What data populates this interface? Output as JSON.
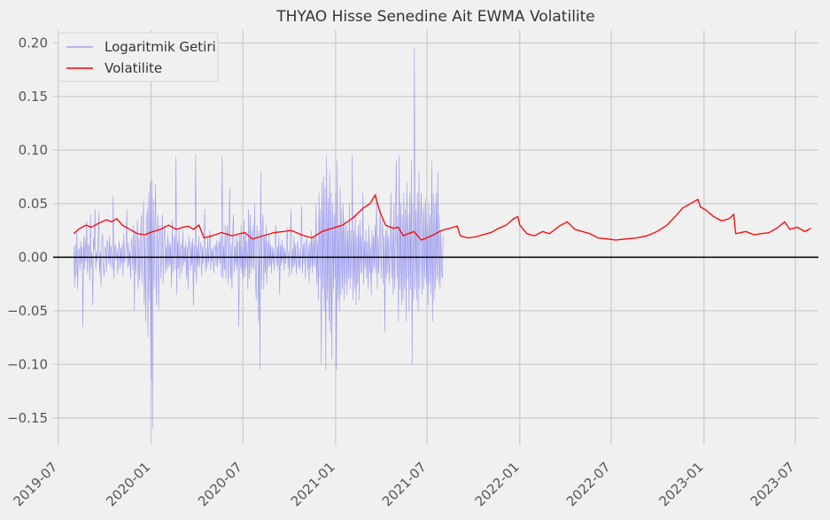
{
  "chart_data": {
    "type": "line",
    "title": "THYAO Hisse Senedine Ait EWMA Volatilite",
    "xlabel": "",
    "ylabel": "",
    "x_range": [
      "2019-06-21",
      "2023-08-16"
    ],
    "ylim": [
      -0.175,
      0.212
    ],
    "grid": true,
    "legend_placement": "top-left",
    "zero_line": 0.0,
    "x_ticks": [
      "2019-07",
      "2020-01",
      "2020-07",
      "2021-01",
      "2021-07",
      "2022-01",
      "2022-07",
      "2023-01",
      "2023-07"
    ],
    "y_ticks": [
      0.2,
      0.15,
      0.1,
      0.05,
      0.0,
      -0.05,
      -0.1,
      -0.15
    ],
    "y_tick_labels": [
      "0.20",
      "0.15",
      "0.10",
      "0.05",
      "0.00",
      "−0.05",
      "−0.10",
      "−0.15"
    ],
    "series": [
      {
        "name": "Logaritmik Getiri",
        "color": "#7b7bf0",
        "style": "thin-line",
        "x_start": "2019-08-01",
        "step_days": 1.5,
        "values": [
          0.01,
          -0.028,
          0.012,
          -0.018,
          0.024,
          -0.03,
          0.005,
          0.008,
          -0.012,
          0.015,
          -0.006,
          0.01,
          -0.065,
          0.02,
          -0.011,
          0.018,
          -0.004,
          0.034,
          -0.015,
          0.012,
          0.009,
          -0.022,
          0.04,
          -0.01,
          0.005,
          -0.045,
          0.018,
          0.007,
          0.045,
          -0.012,
          0.006,
          -0.004,
          0.01,
          0.042,
          -0.015,
          0.005,
          -0.028,
          0.015,
          0.022,
          -0.008,
          -0.018,
          0.01,
          0.006,
          -0.014,
          0.016,
          0.008,
          -0.006,
          0.02,
          -0.009,
          0.011,
          0.003,
          -0.012,
          0.057,
          -0.02,
          0.007,
          0.012,
          -0.003,
          0.008,
          -0.016,
          0.004,
          0.015,
          -0.011,
          0.009,
          -0.006,
          0.012,
          -0.018,
          0.022,
          -0.005,
          0.003,
          0.01,
          0.045,
          -0.01,
          0.014,
          -0.008,
          0.006,
          -0.02,
          0.018,
          0.008,
          -0.012,
          0.03,
          -0.05,
          0.025,
          -0.015,
          0.012,
          0.035,
          -0.03,
          0.018,
          -0.022,
          0.008,
          0.04,
          -0.025,
          0.015,
          0.052,
          -0.045,
          0.02,
          -0.06,
          0.03,
          0.045,
          -0.075,
          0.06,
          -0.04,
          0.07,
          -0.115,
          0.072,
          -0.16,
          0.055,
          -0.03,
          0.025,
          0.068,
          -0.045,
          0.02,
          0.04,
          -0.05,
          0.015,
          0.03,
          -0.02,
          0.012,
          0.04,
          -0.025,
          0.018,
          0.03,
          -0.015,
          0.01,
          -0.012,
          0.022,
          -0.01,
          0.015,
          -0.008,
          0.012,
          -0.028,
          0.035,
          -0.015,
          0.005,
          0.02,
          -0.012,
          0.094,
          -0.035,
          0.015,
          -0.01,
          0.025,
          -0.02,
          0.008,
          0.012,
          -0.015,
          0.025,
          -0.008,
          0.01,
          -0.005,
          0.015,
          -0.02,
          0.01,
          -0.03,
          0.02,
          0.005,
          -0.012,
          0.015,
          -0.008,
          0.018,
          -0.046,
          0.012,
          -0.015,
          0.096,
          -0.025,
          0.01,
          -0.008,
          0.02,
          -0.01,
          0.006,
          0.014,
          -0.018,
          0.01,
          -0.006,
          0.012,
          0.045,
          -0.014,
          0.008,
          -0.01,
          0.018,
          -0.006,
          0.01,
          0.025,
          -0.012,
          0.008,
          -0.004,
          0.01,
          -0.015,
          0.006,
          0.012,
          -0.008,
          0.016,
          -0.01,
          0.005,
          0.015,
          -0.006,
          0.02,
          -0.018,
          0.094,
          -0.02,
          0.01,
          -0.012,
          0.03,
          -0.02,
          0.015,
          0.03,
          -0.025,
          0.015,
          0.065,
          -0.02,
          0.012,
          -0.03,
          0.025,
          0.04,
          -0.015,
          0.01,
          -0.008,
          0.02,
          -0.012,
          0.015,
          -0.065,
          0.02,
          -0.01,
          0.03,
          -0.015,
          0.01,
          -0.02,
          0.035,
          -0.018,
          0.022,
          -0.01,
          0.015,
          -0.03,
          0.045,
          -0.02,
          0.04,
          -0.015,
          0.025,
          -0.01,
          0.03,
          -0.012,
          0.05,
          -0.02,
          -0.04,
          0.03,
          0.015,
          -0.06,
          0.025,
          -0.105,
          0.08,
          -0.03,
          0.025,
          0.04,
          -0.03,
          0.02,
          -0.015,
          0.03,
          -0.025,
          0.015,
          -0.01,
          0.02,
          -0.008,
          0.012,
          -0.015,
          0.01,
          -0.006,
          0.008,
          -0.012,
          0.015,
          0.03,
          -0.008,
          0.01,
          -0.012,
          0.02,
          -0.035,
          0.012,
          -0.008,
          0.016,
          -0.005,
          0.01,
          -0.012,
          0.008,
          -0.006,
          0.012,
          0.028,
          -0.01,
          0.006,
          -0.018,
          0.012,
          0.045,
          -0.015,
          0.008,
          -0.01,
          0.02,
          -0.008,
          0.012,
          -0.016,
          0.01,
          0.015,
          -0.01,
          0.008,
          -0.012,
          0.01,
          0.048,
          -0.015,
          0.012,
          -0.006,
          0.015,
          -0.02,
          0.01,
          0.018,
          -0.012,
          0.012,
          -0.025,
          0.015,
          -0.01,
          0.025,
          -0.015,
          0.018,
          -0.008,
          0.02,
          -0.01,
          0.05,
          -0.025,
          0.015,
          -0.04,
          0.06,
          -0.02,
          0.045,
          -0.1,
          0.07,
          -0.03,
          0.075,
          -0.05,
          0.065,
          -0.105,
          0.094,
          -0.04,
          0.055,
          -0.06,
          0.08,
          -0.07,
          0.06,
          -0.095,
          0.05,
          -0.03,
          0.04,
          -0.02,
          0.06,
          -0.105,
          0.09,
          -0.04,
          0.03,
          -0.05,
          0.065,
          -0.035,
          0.045,
          -0.03,
          0.05,
          -0.04,
          0.035,
          -0.025,
          0.03,
          -0.035,
          0.025,
          -0.02,
          0.05,
          -0.03,
          0.025,
          -0.02,
          0.095,
          -0.04,
          0.025,
          -0.03,
          0.04,
          -0.045,
          0.02,
          -0.025,
          0.03,
          -0.04,
          0.035,
          -0.015,
          0.02,
          -0.015,
          0.06,
          -0.025,
          0.015,
          -0.01,
          0.025,
          -0.02,
          0.015,
          -0.03,
          0.03,
          -0.015,
          0.01,
          -0.035,
          0.025,
          -0.015,
          0.02,
          -0.01,
          0.03,
          -0.015,
          0.06,
          -0.03,
          0.02,
          -0.015,
          0.025,
          0.045,
          -0.02,
          0.015,
          0.035,
          -0.025,
          0.02,
          -0.07,
          0.025,
          -0.02,
          0.03,
          -0.015,
          0.02,
          -0.025,
          0.015,
          0.06,
          -0.02,
          0.03,
          -0.035,
          0.05,
          -0.03,
          0.025,
          0.09,
          -0.02,
          0.04,
          -0.06,
          0.095,
          -0.03,
          0.05,
          -0.045,
          0.04,
          -0.04,
          0.06,
          -0.03,
          0.045,
          -0.06,
          0.07,
          -0.02,
          0.04,
          -0.05,
          0.06,
          -0.03,
          0.09,
          -0.1,
          0.05,
          -0.04,
          0.195,
          -0.03,
          0.045,
          -0.04,
          0.06,
          -0.05,
          0.08,
          -0.03,
          0.03,
          0.06,
          -0.035,
          0.045,
          -0.03,
          0.05,
          -0.02,
          0.055,
          -0.025,
          0.03,
          -0.045,
          0.05,
          -0.025,
          0.04,
          -0.035,
          0.09,
          -0.06,
          0.06,
          -0.04,
          0.05,
          -0.03,
          0.06,
          -0.02,
          0.08,
          -0.025,
          0.04,
          -0.03,
          0.025,
          -0.015,
          -0.02,
          0.02
        ]
      },
      {
        "name": "Volatilite",
        "color": "#ff0000",
        "style": "line",
        "points": [
          [
            "2019-08-01",
            0.022
          ],
          [
            "2019-08-10",
            0.026
          ],
          [
            "2019-08-25",
            0.03
          ],
          [
            "2019-09-05",
            0.028
          ],
          [
            "2019-09-20",
            0.032
          ],
          [
            "2019-10-05",
            0.035
          ],
          [
            "2019-10-15",
            0.033
          ],
          [
            "2019-10-25",
            0.036
          ],
          [
            "2019-11-05",
            0.03
          ],
          [
            "2019-11-20",
            0.026
          ],
          [
            "2019-12-05",
            0.022
          ],
          [
            "2019-12-20",
            0.021
          ],
          [
            "2020-01-05",
            0.024
          ],
          [
            "2020-01-20",
            0.026
          ],
          [
            "2020-02-05",
            0.03
          ],
          [
            "2020-02-20",
            0.026
          ],
          [
            "2020-03-05",
            0.028
          ],
          [
            "2020-03-15",
            0.029
          ],
          [
            "2020-03-25",
            0.026
          ],
          [
            "2020-04-05",
            0.03
          ],
          [
            "2020-04-15",
            0.018
          ],
          [
            "2020-05-01",
            0.02
          ],
          [
            "2020-05-20",
            0.023
          ],
          [
            "2020-06-10",
            0.02
          ],
          [
            "2020-06-25",
            0.022
          ],
          [
            "2020-07-05",
            0.023
          ],
          [
            "2020-07-20",
            0.017
          ],
          [
            "2020-08-10",
            0.02
          ],
          [
            "2020-09-01",
            0.023
          ],
          [
            "2020-09-20",
            0.024
          ],
          [
            "2020-10-05",
            0.025
          ],
          [
            "2020-10-25",
            0.021
          ],
          [
            "2020-11-15",
            0.018
          ],
          [
            "2020-12-05",
            0.024
          ],
          [
            "2020-12-25",
            0.027
          ],
          [
            "2021-01-15",
            0.03
          ],
          [
            "2021-02-05",
            0.037
          ],
          [
            "2021-02-25",
            0.046
          ],
          [
            "2021-03-10",
            0.05
          ],
          [
            "2021-03-20",
            0.058
          ],
          [
            "2021-03-30",
            0.042
          ],
          [
            "2021-04-10",
            0.03
          ],
          [
            "2021-04-25",
            0.027
          ],
          [
            "2021-05-05",
            0.028
          ],
          [
            "2021-05-15",
            0.02
          ],
          [
            "2021-05-25",
            0.022
          ],
          [
            "2021-06-05",
            0.024
          ],
          [
            "2021-06-20",
            0.016
          ],
          [
            "2021-07-10",
            0.02
          ],
          [
            "2021-07-30",
            0.025
          ],
          [
            "2021-08-15",
            0.027
          ],
          [
            "2021-08-30",
            0.029
          ],
          [
            "2021-09-05",
            0.02
          ],
          [
            "2021-09-20",
            0.018
          ],
          [
            "2021-10-05",
            0.019
          ],
          [
            "2021-10-20",
            0.021
          ],
          [
            "2021-11-05",
            0.023
          ],
          [
            "2021-11-20",
            0.027
          ],
          [
            "2021-12-05",
            0.03
          ],
          [
            "2021-12-20",
            0.036
          ],
          [
            "2021-12-28",
            0.038
          ],
          [
            "2022-01-01",
            0.03
          ],
          [
            "2022-01-15",
            0.022
          ],
          [
            "2022-01-30",
            0.02
          ],
          [
            "2022-02-15",
            0.024
          ],
          [
            "2022-03-01",
            0.022
          ],
          [
            "2022-03-20",
            0.029
          ],
          [
            "2022-04-05",
            0.033
          ],
          [
            "2022-04-20",
            0.026
          ],
          [
            "2022-05-05",
            0.024
          ],
          [
            "2022-05-20",
            0.022
          ],
          [
            "2022-06-05",
            0.018
          ],
          [
            "2022-06-25",
            0.017
          ],
          [
            "2022-07-10",
            0.016
          ],
          [
            "2022-07-30",
            0.017
          ],
          [
            "2022-08-20",
            0.018
          ],
          [
            "2022-09-10",
            0.02
          ],
          [
            "2022-09-30",
            0.024
          ],
          [
            "2022-10-20",
            0.03
          ],
          [
            "2022-11-05",
            0.038
          ],
          [
            "2022-11-20",
            0.046
          ],
          [
            "2022-12-05",
            0.05
          ],
          [
            "2022-12-20",
            0.054
          ],
          [
            "2022-12-25",
            0.047
          ],
          [
            "2023-01-05",
            0.044
          ],
          [
            "2023-01-20",
            0.038
          ],
          [
            "2023-02-05",
            0.034
          ],
          [
            "2023-02-20",
            0.036
          ],
          [
            "2023-03-01",
            0.04
          ],
          [
            "2023-03-05",
            0.022
          ],
          [
            "2023-03-25",
            0.024
          ],
          [
            "2023-04-10",
            0.021
          ],
          [
            "2023-04-25",
            0.022
          ],
          [
            "2023-05-10",
            0.023
          ],
          [
            "2023-05-25",
            0.027
          ],
          [
            "2023-06-10",
            0.033
          ],
          [
            "2023-06-20",
            0.026
          ],
          [
            "2023-07-05",
            0.028
          ],
          [
            "2023-07-20",
            0.024
          ],
          [
            "2023-08-01",
            0.027
          ]
        ]
      }
    ]
  }
}
